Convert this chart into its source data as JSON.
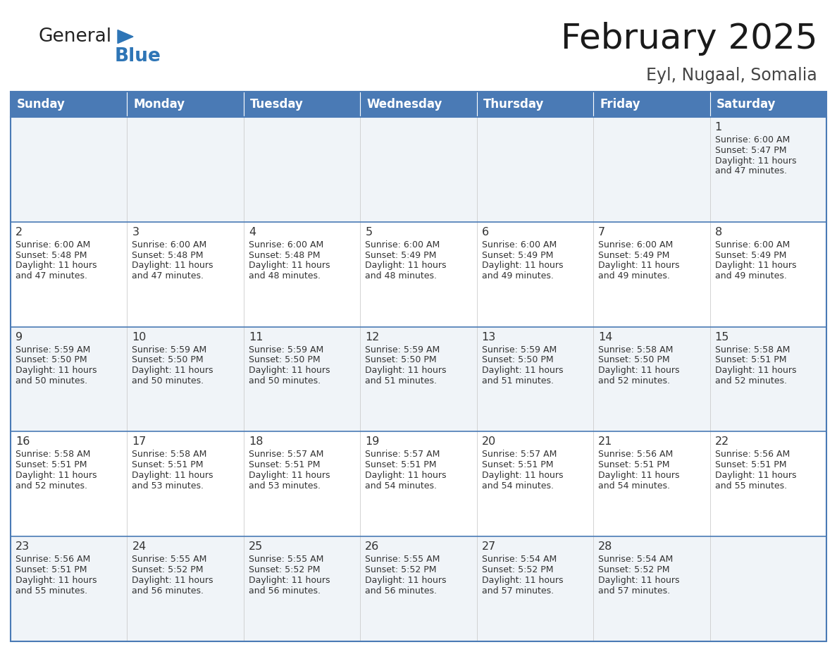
{
  "title": "February 2025",
  "subtitle": "Eyl, Nugaal, Somalia",
  "days_of_week": [
    "Sunday",
    "Monday",
    "Tuesday",
    "Wednesday",
    "Thursday",
    "Friday",
    "Saturday"
  ],
  "header_bg": "#4a7ab5",
  "header_text": "#FFFFFF",
  "cell_bg_odd": "#f0f4f8",
  "cell_bg_even": "#FFFFFF",
  "border_color": "#4a7ab5",
  "line_color": "#4a7ab5",
  "text_color": "#333333",
  "title_color": "#1a1a1a",
  "subtitle_color": "#444444",
  "calendar_data": [
    [
      null,
      null,
      null,
      null,
      null,
      null,
      {
        "day": 1,
        "sunrise": "6:00 AM",
        "sunset": "5:47 PM",
        "daylight": "11 hours and 47 minutes."
      }
    ],
    [
      {
        "day": 2,
        "sunrise": "6:00 AM",
        "sunset": "5:48 PM",
        "daylight": "11 hours and 47 minutes."
      },
      {
        "day": 3,
        "sunrise": "6:00 AM",
        "sunset": "5:48 PM",
        "daylight": "11 hours and 47 minutes."
      },
      {
        "day": 4,
        "sunrise": "6:00 AM",
        "sunset": "5:48 PM",
        "daylight": "11 hours and 48 minutes."
      },
      {
        "day": 5,
        "sunrise": "6:00 AM",
        "sunset": "5:49 PM",
        "daylight": "11 hours and 48 minutes."
      },
      {
        "day": 6,
        "sunrise": "6:00 AM",
        "sunset": "5:49 PM",
        "daylight": "11 hours and 49 minutes."
      },
      {
        "day": 7,
        "sunrise": "6:00 AM",
        "sunset": "5:49 PM",
        "daylight": "11 hours and 49 minutes."
      },
      {
        "day": 8,
        "sunrise": "6:00 AM",
        "sunset": "5:49 PM",
        "daylight": "11 hours and 49 minutes."
      }
    ],
    [
      {
        "day": 9,
        "sunrise": "5:59 AM",
        "sunset": "5:50 PM",
        "daylight": "11 hours and 50 minutes."
      },
      {
        "day": 10,
        "sunrise": "5:59 AM",
        "sunset": "5:50 PM",
        "daylight": "11 hours and 50 minutes."
      },
      {
        "day": 11,
        "sunrise": "5:59 AM",
        "sunset": "5:50 PM",
        "daylight": "11 hours and 50 minutes."
      },
      {
        "day": 12,
        "sunrise": "5:59 AM",
        "sunset": "5:50 PM",
        "daylight": "11 hours and 51 minutes."
      },
      {
        "day": 13,
        "sunrise": "5:59 AM",
        "sunset": "5:50 PM",
        "daylight": "11 hours and 51 minutes."
      },
      {
        "day": 14,
        "sunrise": "5:58 AM",
        "sunset": "5:50 PM",
        "daylight": "11 hours and 52 minutes."
      },
      {
        "day": 15,
        "sunrise": "5:58 AM",
        "sunset": "5:51 PM",
        "daylight": "11 hours and 52 minutes."
      }
    ],
    [
      {
        "day": 16,
        "sunrise": "5:58 AM",
        "sunset": "5:51 PM",
        "daylight": "11 hours and 52 minutes."
      },
      {
        "day": 17,
        "sunrise": "5:58 AM",
        "sunset": "5:51 PM",
        "daylight": "11 hours and 53 minutes."
      },
      {
        "day": 18,
        "sunrise": "5:57 AM",
        "sunset": "5:51 PM",
        "daylight": "11 hours and 53 minutes."
      },
      {
        "day": 19,
        "sunrise": "5:57 AM",
        "sunset": "5:51 PM",
        "daylight": "11 hours and 54 minutes."
      },
      {
        "day": 20,
        "sunrise": "5:57 AM",
        "sunset": "5:51 PM",
        "daylight": "11 hours and 54 minutes."
      },
      {
        "day": 21,
        "sunrise": "5:56 AM",
        "sunset": "5:51 PM",
        "daylight": "11 hours and 54 minutes."
      },
      {
        "day": 22,
        "sunrise": "5:56 AM",
        "sunset": "5:51 PM",
        "daylight": "11 hours and 55 minutes."
      }
    ],
    [
      {
        "day": 23,
        "sunrise": "5:56 AM",
        "sunset": "5:51 PM",
        "daylight": "11 hours and 55 minutes."
      },
      {
        "day": 24,
        "sunrise": "5:55 AM",
        "sunset": "5:52 PM",
        "daylight": "11 hours and 56 minutes."
      },
      {
        "day": 25,
        "sunrise": "5:55 AM",
        "sunset": "5:52 PM",
        "daylight": "11 hours and 56 minutes."
      },
      {
        "day": 26,
        "sunrise": "5:55 AM",
        "sunset": "5:52 PM",
        "daylight": "11 hours and 56 minutes."
      },
      {
        "day": 27,
        "sunrise": "5:54 AM",
        "sunset": "5:52 PM",
        "daylight": "11 hours and 57 minutes."
      },
      {
        "day": 28,
        "sunrise": "5:54 AM",
        "sunset": "5:52 PM",
        "daylight": "11 hours and 57 minutes."
      },
      null
    ]
  ],
  "logo_text_general": "General",
  "logo_text_blue": "Blue",
  "logo_color_general": "#222222",
  "logo_color_blue": "#2E75B6",
  "logo_triangle_color": "#2E75B6",
  "fig_width": 11.88,
  "fig_height": 9.18,
  "dpi": 100
}
